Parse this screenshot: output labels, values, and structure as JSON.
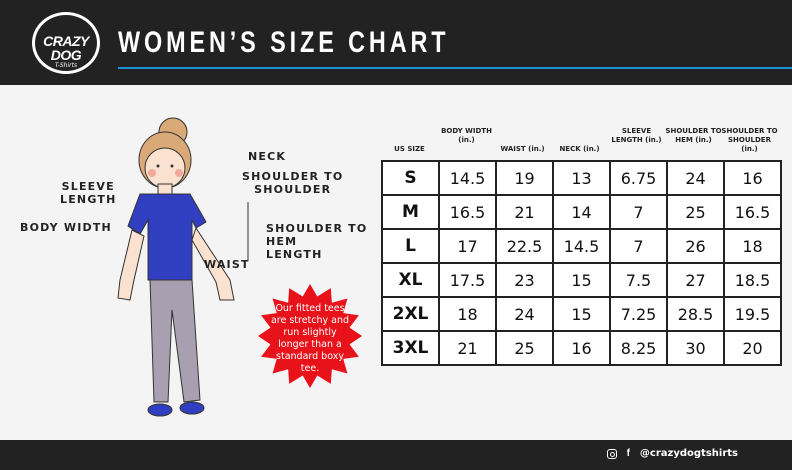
{
  "header": {
    "logo_text": "CRAZY DOG",
    "logo_sub": "T-Shirts",
    "title": "WOMEN’S SIZE CHART"
  },
  "colors": {
    "accent": "#1c8fd6",
    "burst": "#e8121b",
    "shirt": "#2f3fbf"
  },
  "figure": {
    "labels": {
      "neck": "NECK",
      "shoulder_to_shoulder": "SHOULDER TO\nSHOULDER",
      "sleeve_length": "SLEEVE\nLENGTH",
      "body_width": "BODY WIDTH",
      "shoulder_to_hem": "SHOULDER TO\nHEM\nLENGTH",
      "waist": "WAIST"
    }
  },
  "note": "Our fitted tees are stretchy and run slightly longer than a standard boxy tee.",
  "table": {
    "headers": [
      "US SIZE",
      "BODY WIDTH (in.)",
      "WAIST (in.)",
      "NECK (in.)",
      "SLEEVE LENGTH (in.)",
      "SHOULDER TO HEM (in.)",
      "SHOULDER TO SHOULDER (in.)"
    ],
    "rows": [
      [
        "S",
        "14.5",
        "19",
        "13",
        "6.75",
        "24",
        "16"
      ],
      [
        "M",
        "16.5",
        "21",
        "14",
        "7",
        "25",
        "16.5"
      ],
      [
        "L",
        "17",
        "22.5",
        "14.5",
        "7",
        "26",
        "18"
      ],
      [
        "XL",
        "17.5",
        "23",
        "15",
        "7.5",
        "27",
        "18.5"
      ],
      [
        "2XL",
        "18",
        "24",
        "15",
        "7.25",
        "28.5",
        "19.5"
      ],
      [
        "3XL",
        "21",
        "25",
        "16",
        "8.25",
        "30",
        "20"
      ]
    ]
  },
  "footer": {
    "handle": "@crazydogtshirts",
    "icons": [
      "instagram-icon",
      "facebook-icon"
    ]
  }
}
